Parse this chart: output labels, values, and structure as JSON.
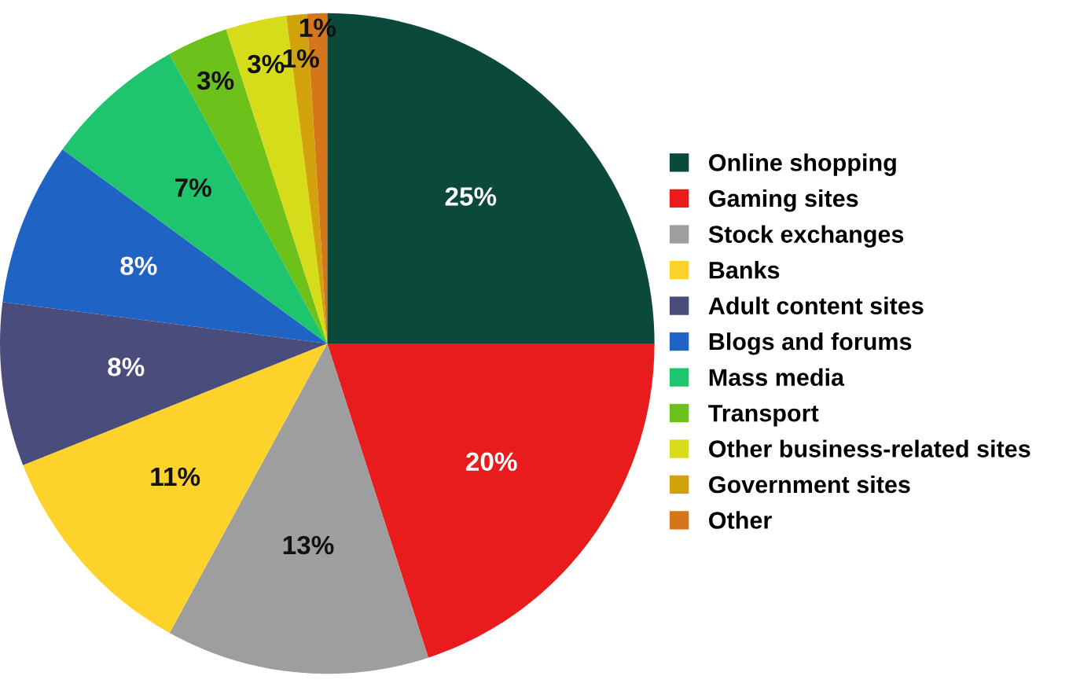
{
  "chart_data": {
    "type": "pie",
    "categories": [
      "Online shopping",
      "Gaming sites",
      "Stock exchanges",
      "Banks",
      "Adult content sites",
      "Blogs and forums",
      "Mass media",
      "Transport",
      "Other business-related sites",
      "Government sites",
      "Other"
    ],
    "values": [
      25,
      20,
      13,
      11,
      8,
      8,
      7,
      3,
      3,
      1,
      1
    ],
    "value_labels": [
      "25%",
      "20%",
      "13%",
      "11%",
      "8%",
      "8%",
      "7%",
      "3%",
      "3%",
      "1%",
      "1%"
    ],
    "colors": [
      "#0b4a3b",
      "#e81c1c",
      "#9e9e9e",
      "#fdd22a",
      "#4a4c7c",
      "#1f64c4",
      "#1fc46e",
      "#6cc21a",
      "#d6dc1a",
      "#d2a20c",
      "#d5761a"
    ],
    "legend": "right"
  }
}
